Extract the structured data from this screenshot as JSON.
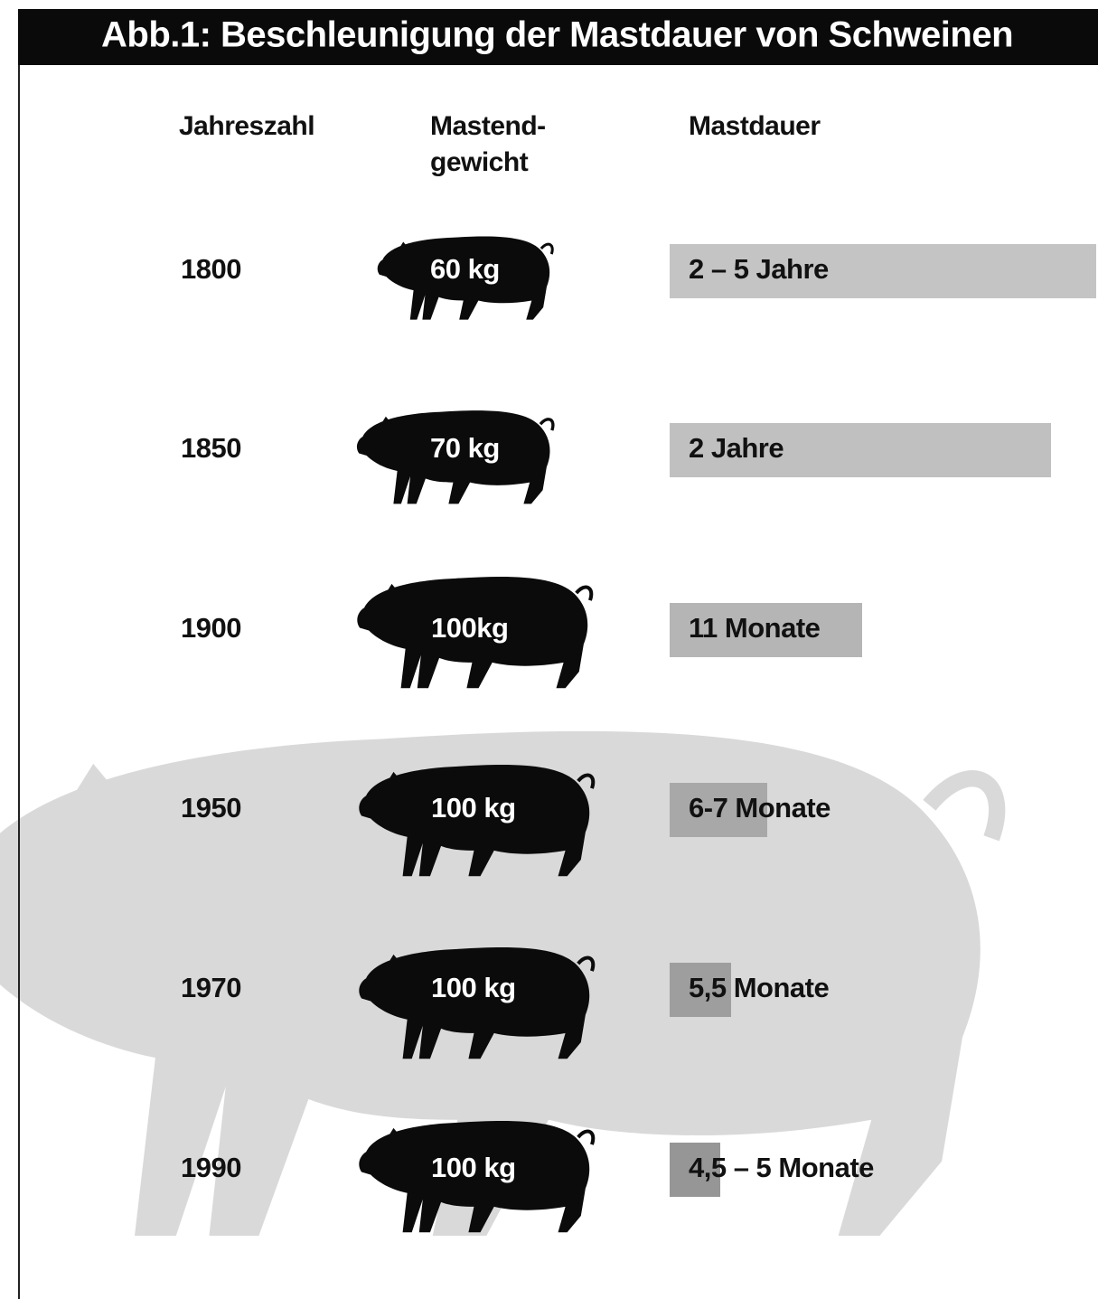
{
  "title": "Abb.1: Beschleunigung der Mastdauer von Schweinen",
  "header": {
    "year": "Jahreszahl",
    "weight": [
      "Mastend-",
      "gewicht"
    ],
    "duration": "Mastdauer"
  },
  "rows": [
    {
      "year": "1800",
      "weight": "60 kg",
      "duration": "2 – 5 Jahre"
    },
    {
      "year": "1850",
      "weight": "70 kg",
      "duration": "2 Jahre"
    },
    {
      "year": "1900",
      "weight": "100kg",
      "duration": "11 Monate"
    },
    {
      "year": "1950",
      "weight": "100 kg",
      "duration": "6-7 Monate"
    },
    {
      "year": "1970",
      "weight": "100 kg",
      "duration": "5,5 Monate"
    },
    {
      "year": "1990",
      "weight": "100 kg",
      "duration": "4,5 – 5 Monate"
    }
  ]
}
